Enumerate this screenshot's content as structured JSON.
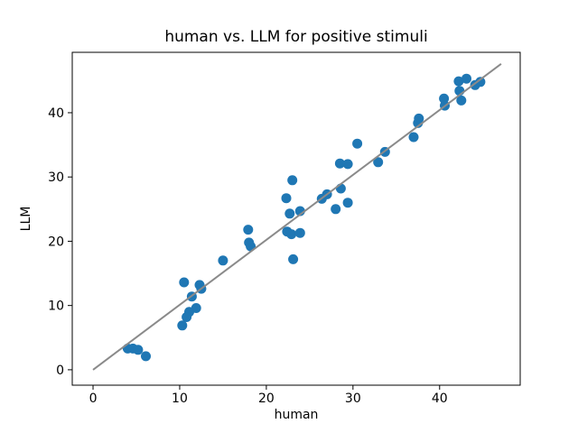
{
  "figure": {
    "background": "#ffffff"
  },
  "chart_data": {
    "type": "scatter",
    "title": "human vs. LLM for positive stimuli",
    "xlabel": "human",
    "ylabel": "LLM",
    "xlim": [
      -2.4,
      49.3
    ],
    "ylim": [
      -2.4,
      49.4
    ],
    "xticks": [
      0,
      10,
      20,
      30,
      40
    ],
    "yticks": [
      0,
      10,
      20,
      30,
      40
    ],
    "grid": false,
    "legend": "none",
    "marker_color": "#1f77b4",
    "line_color": "#8a8a8a",
    "axis_color": "#000000",
    "identity_line": {
      "x1": 0,
      "y1": 0,
      "x2": 47.1,
      "y2": 47.6
    },
    "points": [
      [
        4.0,
        3.3
      ],
      [
        4.6,
        3.3
      ],
      [
        5.2,
        3.1
      ],
      [
        6.1,
        2.1
      ],
      [
        10.5,
        13.6
      ],
      [
        12.3,
        13.2
      ],
      [
        12.5,
        12.6
      ],
      [
        11.4,
        11.4
      ],
      [
        11.9,
        9.6
      ],
      [
        11.1,
        9.0
      ],
      [
        10.8,
        8.2
      ],
      [
        10.3,
        6.9
      ],
      [
        15.0,
        17.0
      ],
      [
        17.9,
        21.8
      ],
      [
        18.0,
        19.8
      ],
      [
        18.2,
        19.2
      ],
      [
        23.0,
        29.5
      ],
      [
        22.3,
        26.7
      ],
      [
        22.7,
        24.3
      ],
      [
        23.9,
        24.7
      ],
      [
        22.4,
        21.5
      ],
      [
        22.9,
        21.1
      ],
      [
        23.9,
        21.3
      ],
      [
        23.1,
        17.2
      ],
      [
        26.4,
        26.6
      ],
      [
        27.0,
        27.3
      ],
      [
        28.6,
        28.2
      ],
      [
        28.0,
        25.0
      ],
      [
        29.4,
        26.0
      ],
      [
        28.5,
        32.1
      ],
      [
        29.4,
        32.0
      ],
      [
        30.5,
        35.2
      ],
      [
        32.9,
        32.3
      ],
      [
        33.7,
        33.9
      ],
      [
        37.0,
        36.2
      ],
      [
        37.5,
        38.4
      ],
      [
        37.6,
        39.1
      ],
      [
        40.5,
        42.2
      ],
      [
        40.6,
        41.1
      ],
      [
        42.2,
        44.9
      ],
      [
        43.1,
        45.3
      ],
      [
        42.3,
        43.4
      ],
      [
        42.5,
        41.9
      ],
      [
        44.1,
        44.3
      ],
      [
        44.7,
        44.8
      ]
    ]
  }
}
